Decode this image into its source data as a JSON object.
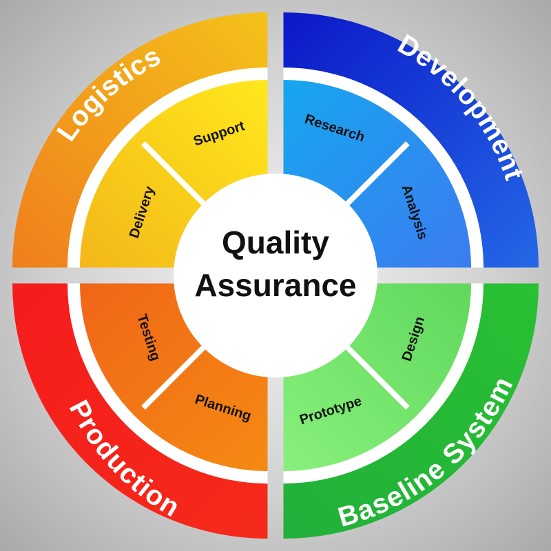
{
  "center": {
    "line1": "Quality",
    "line2": "Assurance"
  },
  "quadrants": [
    {
      "id": "logistics",
      "label": "Logistics",
      "outer_colors": [
        "#f4c21a",
        "#f07e1c"
      ],
      "inner_colors": [
        "#ffe81c",
        "#f3b719"
      ],
      "items": [
        "Delivery",
        "Support"
      ]
    },
    {
      "id": "development",
      "label": "Development",
      "outer_colors": [
        "#0b18c8",
        "#2468e6"
      ],
      "inner_colors": [
        "#16a6ef",
        "#3c7cf0"
      ],
      "items": [
        "Research",
        "Analysis"
      ]
    },
    {
      "id": "baseline-system",
      "label": "Baseline System",
      "outer_colors": [
        "#29c032",
        "#22b03a"
      ],
      "inner_colors": [
        "#60d85c",
        "#88f07c"
      ],
      "items": [
        "Design",
        "Prototype"
      ]
    },
    {
      "id": "production",
      "label": "Production",
      "outer_colors": [
        "#f51c1c",
        "#f52a1a"
      ],
      "inner_colors": [
        "#f06518",
        "#f58a12"
      ],
      "items": [
        "Planning",
        "Testing"
      ]
    }
  ]
}
